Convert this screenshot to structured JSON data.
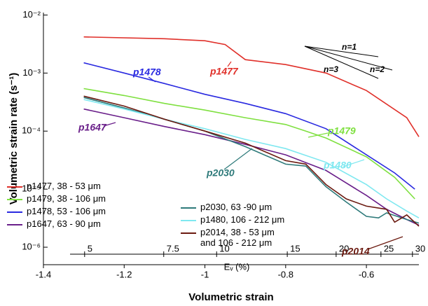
{
  "chart_data": {
    "type": "line",
    "log_y": true,
    "ylabel": "Volumetric strain rate (s⁻¹)",
    "xlabel": "Volumetric strain",
    "x2label": "Eᵥ (%)",
    "xlim": [
      -1.4,
      -0.47
    ],
    "ylim": [
      5e-07,
      0.011
    ],
    "xticks": [
      -1.4,
      -1.2,
      -1,
      -0.8,
      -0.6
    ],
    "yticks": [
      {
        "value": 0.01,
        "label": "10⁻²"
      },
      {
        "value": 0.001,
        "label": "10⁻³"
      },
      {
        "value": 0.0001,
        "label": "10⁻⁴"
      },
      {
        "value": 1e-05,
        "label": "10⁻⁵"
      },
      {
        "value": 1e-06,
        "label": "10⁻⁶"
      }
    ],
    "x2ticks": [
      {
        "value": -1.298,
        "label": "5"
      },
      {
        "value": -1.102,
        "label": "7.5"
      },
      {
        "value": -0.971,
        "label": "10"
      },
      {
        "value": -0.796,
        "label": "15"
      },
      {
        "value": -0.675,
        "label": "20"
      },
      {
        "value": -0.564,
        "label": "25"
      },
      {
        "value": -0.486,
        "label": "30"
      }
    ],
    "series": [
      {
        "name": "p1477, 38 - 53 μm",
        "color": "#e0302a",
        "x": [
          -1.3,
          -1.1,
          -1.0,
          -0.95,
          -0.9,
          -0.8,
          -0.7,
          -0.6,
          -0.5,
          -0.47
        ],
        "values": [
          0.0042,
          0.0039,
          0.0036,
          0.0031,
          0.0017,
          0.0014,
          0.001,
          0.0005,
          0.00017,
          8e-05
        ]
      },
      {
        "name": "p1479, 38 - 106 μm",
        "color": "#7fe040",
        "x": [
          -1.3,
          -1.2,
          -1.1,
          -1.0,
          -0.9,
          -0.8,
          -0.75,
          -0.7,
          -0.6,
          -0.53,
          -0.48
        ],
        "values": [
          0.00054,
          0.00041,
          0.0003,
          0.00023,
          0.00017,
          0.00013,
          0.0001,
          7.6e-05,
          3.6e-05,
          1.6e-05,
          6.8e-06
        ]
      },
      {
        "name": "p1478, 53 - 106 μm",
        "color": "#2a2ae0",
        "x": [
          -1.3,
          -1.2,
          -1.1,
          -1.0,
          -0.9,
          -0.8,
          -0.7,
          -0.6,
          -0.53,
          -0.48
        ],
        "values": [
          0.0015,
          0.001,
          0.00066,
          0.00043,
          0.0003,
          0.0002,
          0.00011,
          3.9e-05,
          1.9e-05,
          1e-05
        ]
      },
      {
        "name": "p1647, 63 - 90 μm",
        "color": "#6a1f8a",
        "x": [
          -1.3,
          -1.2,
          -1.1,
          -1.0,
          -0.9,
          -0.8,
          -0.7,
          -0.6,
          -0.55,
          -0.5,
          -0.47
        ],
        "values": [
          0.00024,
          0.00017,
          0.00012,
          8.7e-05,
          5.9e-05,
          3.9e-05,
          2.1e-05,
          7.8e-06,
          4.5e-06,
          3e-06,
          2.4e-06
        ]
      },
      {
        "name": "p2030, 63 -90 μm",
        "color": "#2e7a7a",
        "x": [
          -1.3,
          -1.2,
          -1.1,
          -1.0,
          -0.9,
          -0.8,
          -0.75,
          -0.7,
          -0.65,
          -0.6,
          -0.57,
          -0.55,
          -0.5,
          -0.47
        ],
        "values": [
          0.00038,
          0.00025,
          0.00016,
          0.0001,
          5.4e-05,
          2.7e-05,
          2.5e-05,
          1.1e-05,
          6e-06,
          3.4e-06,
          3.2e-06,
          3.9e-06,
          3e-06,
          2.6e-06
        ]
      },
      {
        "name": "p1480, 106 - 212 μm",
        "color": "#7fe8f0",
        "x": [
          -1.3,
          -1.2,
          -1.1,
          -1.0,
          -0.9,
          -0.8,
          -0.7,
          -0.6,
          -0.55,
          -0.5,
          -0.47
        ],
        "values": [
          0.00035,
          0.00024,
          0.00016,
          0.00011,
          7.2e-05,
          5e-05,
          2.9e-05,
          1.2e-05,
          6.8e-06,
          4.2e-06,
          3.2e-06
        ]
      },
      {
        "name": "p2014, 38 - 53 μm and 106 - 212 μm",
        "color": "#6b1a10",
        "x": [
          -1.3,
          -1.2,
          -1.1,
          -1.0,
          -0.9,
          -0.8,
          -0.75,
          -0.7,
          -0.65,
          -0.6,
          -0.55,
          -0.53,
          -0.5,
          -0.47
        ],
        "values": [
          0.0004,
          0.00027,
          0.00016,
          0.0001,
          6.2e-05,
          3.1e-05,
          2.7e-05,
          1.2e-05,
          6.8e-06,
          5.1e-06,
          4.5e-06,
          2.7e-06,
          3.6e-06,
          2.3e-06
        ]
      }
    ],
    "annotations": [
      {
        "text": "p1477",
        "color": "#e0302a"
      },
      {
        "text": "p1478",
        "color": "#2a2ae0"
      },
      {
        "text": "p1479",
        "color": "#7fe040"
      },
      {
        "text": "p1647",
        "color": "#6a1f8a"
      },
      {
        "text": "p2030",
        "color": "#2e7a7a"
      },
      {
        "text": "p1480",
        "color": "#7fe8f0"
      },
      {
        "text": "p2014",
        "color": "#6b1a10"
      },
      {
        "text": "n=1",
        "color": "#000000"
      },
      {
        "text": "n=3",
        "color": "#000000"
      },
      {
        "text": "n=2",
        "color": "#000000"
      }
    ]
  }
}
